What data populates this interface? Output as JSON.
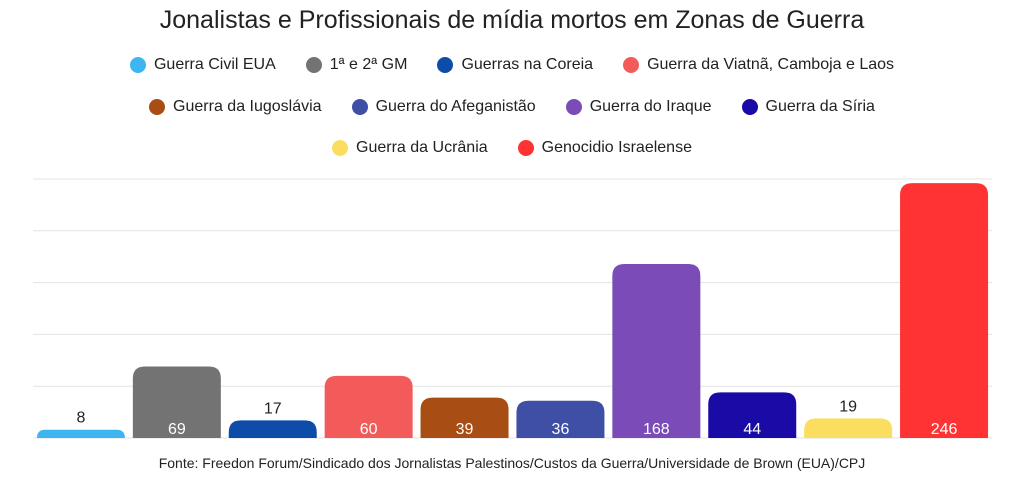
{
  "chart_data": {
    "type": "bar",
    "title": "Jonalistas e Profissionais de mídia mortos em Zonas de Guerra",
    "xlabel": "",
    "ylabel": "",
    "ylim": [
      0,
      250
    ],
    "grid": true,
    "legend": "top",
    "categories": [
      "Guerra Civil EUA",
      "1ª e 2ª GM",
      "Guerras na Coreia",
      "Guerra da Viatnã, Camboja e Laos",
      "Guerra da Iugoslávia",
      "Guerra do Afeganistão",
      "Guerra do Iraque",
      "Guerra da Síria",
      "Guerra da Ucrânia",
      "Genocidio Israelense"
    ],
    "values": [
      8,
      69,
      17,
      60,
      39,
      36,
      168,
      44,
      19,
      246
    ],
    "labels": [
      "8",
      "69",
      "17",
      "60",
      "39",
      "36",
      "168",
      "44",
      "19",
      "246"
    ],
    "colors": [
      "#3db5f0",
      "#737373",
      "#0d4ca8",
      "#f35b5b",
      "#a84d14",
      "#3f4fa6",
      "#7b4bb8",
      "#1a0aa6",
      "#fbdd5f",
      "#ff3333"
    ],
    "label_colors": [
      "#222222",
      "#ffffff",
      "#222222",
      "#ffffff",
      "#ffffff",
      "#ffffff",
      "#ffffff",
      "#ffffff",
      "#222222",
      "#ffffff"
    ],
    "label_outside": [
      true,
      false,
      true,
      false,
      false,
      false,
      false,
      false,
      true,
      false
    ],
    "source": "Fonte: Freedon Forum/Sindicado dos Jornalistas Palestinos/Custos da Guerra/Universidade de Brown (EUA)/CPJ"
  }
}
